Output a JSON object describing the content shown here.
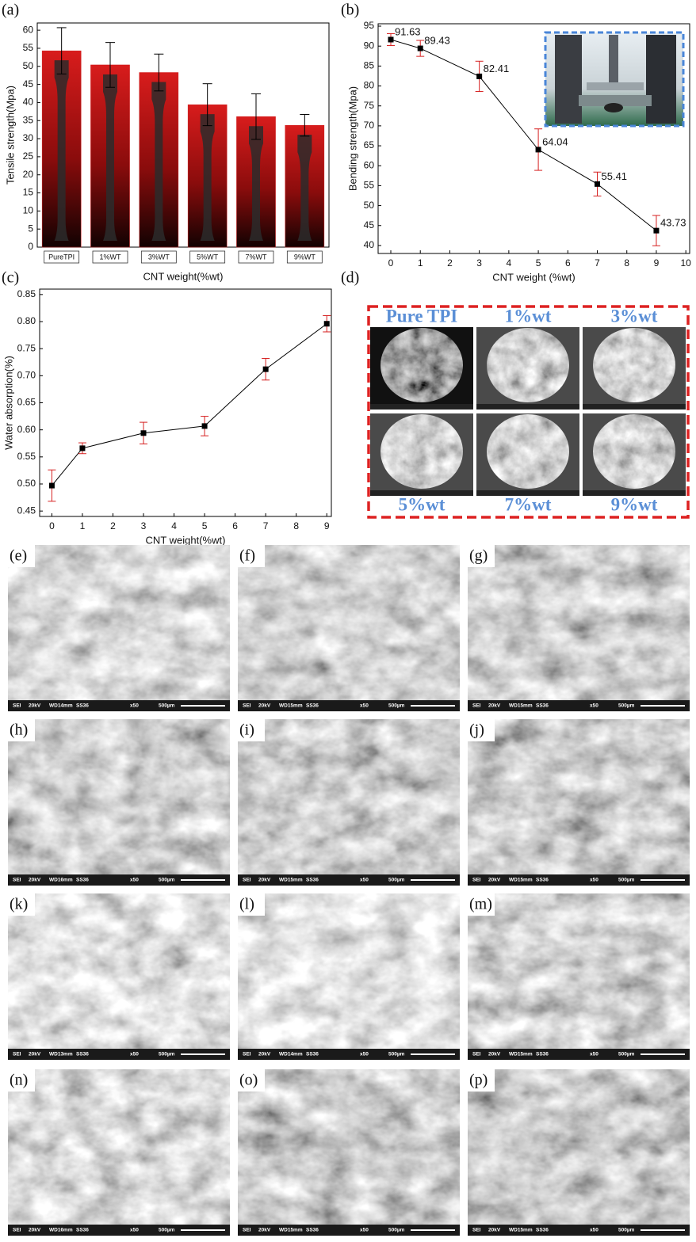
{
  "chart_data": [
    {
      "type": "bar",
      "panel": "(a)",
      "ylabel": "Tensile strength(Mpa)",
      "xlabel": "CNT weight(%wt)",
      "categories": [
        "PureTPI",
        "1%WT",
        "3%WT",
        "5%WT",
        "7%WT",
        "9%WT"
      ],
      "values": [
        54.3,
        50.4,
        48.3,
        39.4,
        36.1,
        33.7
      ],
      "errors": [
        6.4,
        6.2,
        5.1,
        5.8,
        6.3,
        3.0
      ],
      "color": "#d01818",
      "error_color": "#000000",
      "ylim": [
        0,
        62
      ],
      "yticks": [
        0,
        5,
        10,
        15,
        20,
        25,
        30,
        35,
        40,
        45,
        50,
        55,
        60
      ]
    },
    {
      "type": "line",
      "panel": "(b)",
      "ylabel": "Bending strength(Mpa)",
      "xlabel": "CNT weight (%wt)",
      "x": [
        0,
        1,
        3,
        5,
        7,
        9
      ],
      "values": [
        91.63,
        89.43,
        82.41,
        64.04,
        55.41,
        43.73
      ],
      "errors": [
        1.5,
        2.0,
        3.8,
        5.2,
        3.0,
        3.8
      ],
      "color": "#000000",
      "error_color": "#d62020",
      "data_labels": true,
      "xlim": [
        -0.43,
        10.13
      ],
      "xticks": [
        0,
        1,
        2,
        3,
        4,
        5,
        6,
        7,
        8,
        9,
        10
      ],
      "ylim": [
        38,
        95.6
      ],
      "yticks": [
        40,
        45,
        50,
        55,
        60,
        65,
        70,
        75,
        80,
        85,
        90,
        95
      ]
    },
    {
      "type": "line",
      "panel": "(c)",
      "ylabel": "Water absorption(%)",
      "xlabel": "CNT weight(%wt)",
      "x": [
        0,
        1,
        3,
        5,
        7,
        9
      ],
      "values": [
        0.497,
        0.566,
        0.594,
        0.607,
        0.712,
        0.796
      ],
      "errors": [
        0.029,
        0.01,
        0.02,
        0.018,
        0.02,
        0.015
      ],
      "color": "#000000",
      "error_color": "#d62020",
      "data_labels": false,
      "xlim": [
        -0.4,
        9.15
      ],
      "xticks": [
        0,
        1,
        2,
        3,
        4,
        5,
        6,
        7,
        8,
        9
      ],
      "ylim": [
        0.44,
        0.86
      ],
      "yticks": [
        0.45,
        {
          "value": 0.5,
          "label": "0.50"
        },
        0.55,
        {
          "value": 0.6,
          "label": "0.60"
        },
        0.65,
        {
          "value": 0.7,
          "label": "0.70"
        },
        0.75,
        {
          "value": 0.8,
          "label": "0.80"
        },
        0.85
      ]
    }
  ],
  "panel_d": {
    "label": "(d)",
    "samples": [
      "Pure TPI",
      "1%wt",
      "3%wt",
      "5%wt",
      "7%wt",
      "9%wt"
    ]
  },
  "sem_panels": [
    {
      "label": "(e)",
      "info": [
        "SEI",
        "20kV",
        "WD14mm",
        "SS36",
        "x50",
        "500µm"
      ]
    },
    {
      "label": "(f)",
      "info": [
        "SEI",
        "20kV",
        "WD15mm",
        "SS36",
        "x50",
        "500µm"
      ]
    },
    {
      "label": "(g)",
      "info": [
        "SEI",
        "20kV",
        "WD15mm",
        "SS36",
        "x50",
        "500µm"
      ]
    },
    {
      "label": "(h)",
      "info": [
        "SEI",
        "20kV",
        "WD16mm",
        "SS36",
        "x50",
        "500µm"
      ]
    },
    {
      "label": "(i)",
      "info": [
        "SEI",
        "20kV",
        "WD15mm",
        "SS36",
        "x50",
        "500µm"
      ]
    },
    {
      "label": "(j)",
      "info": [
        "SEI",
        "20kV",
        "WD15mm",
        "SS36",
        "x50",
        "500µm"
      ]
    },
    {
      "label": "(k)",
      "info": [
        "SEI",
        "20kV",
        "WD13mm",
        "SS36",
        "x50",
        "500µm"
      ]
    },
    {
      "label": "(l)",
      "info": [
        "SEI",
        "20kV",
        "WD14mm",
        "SS36",
        "x50",
        "500µm"
      ]
    },
    {
      "label": "(m)",
      "info": [
        "SEI",
        "20kV",
        "WD15mm",
        "SS36",
        "x50",
        "500µm"
      ]
    },
    {
      "label": "(n)",
      "info": [
        "SEI",
        "20kV",
        "WD16mm",
        "SS36",
        "x50",
        "500µm"
      ]
    },
    {
      "label": "(o)",
      "info": [
        "SEI",
        "20kV",
        "WD15mm",
        "SS36",
        "x50",
        "500µm"
      ]
    },
    {
      "label": "(p)",
      "info": [
        "SEI",
        "20kV",
        "WD15mm",
        "SS36",
        "x50",
        "500µm"
      ]
    }
  ]
}
